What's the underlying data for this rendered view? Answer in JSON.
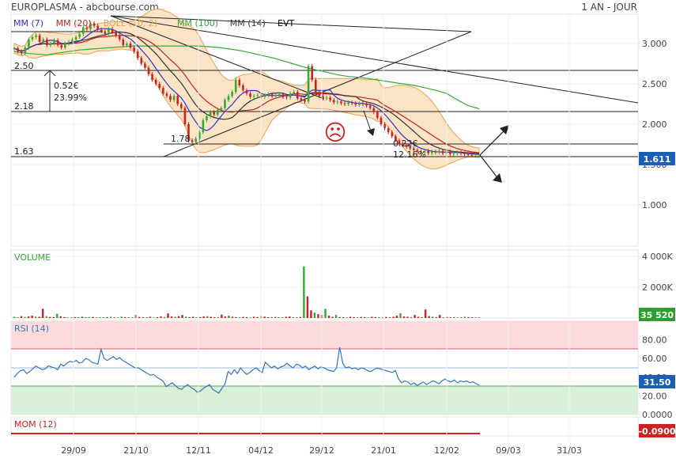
{
  "header": {
    "title": "EUROPLASMA - abcbourse.com",
    "period": "1 AN - JOUR"
  },
  "legend": [
    {
      "label": "MM (7)",
      "color": "#3333cc"
    },
    {
      "label": "MM (20)",
      "color": "#cc2222"
    },
    {
      "label": "BOLL (20, 2)",
      "color": "#f0a050"
    },
    {
      "label": "MM (100)",
      "color": "#33aa33"
    },
    {
      "label": "MM (14)",
      "color": "#333333"
    },
    {
      "label": "EVT",
      "color": "#000000"
    }
  ],
  "colors": {
    "up": "#33aa33",
    "down": "#cc2222",
    "boll_fill": "#fbe3c6",
    "boll_line": "#f0a050",
    "mm7": "#3333cc",
    "mm20": "#cc2222",
    "mm100": "#33aa33",
    "mm14": "#333333",
    "rsi_line": "#3377bb",
    "badge_price": "#1a5fb4",
    "badge_volume": "#2e9e2e",
    "badge_mom": "#cc2222"
  },
  "annotations": {
    "level_high": "2.50",
    "level_mid": "2.18",
    "level_low": "1.63",
    "level_178": "1.78",
    "gain_abs": "0.52€",
    "gain_pct": "23.99%",
    "drop_abs": "0.22€",
    "drop_pct": "12.16%",
    "smiley": "☹"
  },
  "badges": {
    "price": "1.611",
    "volume": "35 520",
    "rsi": "31.50",
    "mom": "-0.0900"
  },
  "panels": {
    "volume_title": "VOLUME",
    "rsi_title": "RSI (14)",
    "mom_title": "MOM (12)"
  },
  "chart_data": {
    "type": "line",
    "price": {
      "yticks": [
        "3.000",
        "2.500",
        "2.000",
        "1.500",
        "1.000"
      ],
      "ylim": [
        0.5,
        3.3
      ],
      "close": [
        2.94,
        2.9,
        2.88,
        2.95,
        3.05,
        3.08,
        3.1,
        3.02,
        3.05,
        2.98,
        3.0,
        3.04,
        2.98,
        2.95,
        3.0,
        3.02,
        3.05,
        3.08,
        3.12,
        3.2,
        3.18,
        3.25,
        3.22,
        3.17,
        3.15,
        3.12,
        3.18,
        3.14,
        3.1,
        3.05,
        2.98,
        3.0,
        2.95,
        2.9,
        2.82,
        2.75,
        2.7,
        2.62,
        2.55,
        2.5,
        2.45,
        2.38,
        2.35,
        2.3,
        2.35,
        2.25,
        2.2,
        2.0,
        1.8,
        1.78,
        1.82,
        1.9,
        2.05,
        2.1,
        2.15,
        2.12,
        2.18,
        2.2,
        2.3,
        2.35,
        2.4,
        2.55,
        2.48,
        2.42,
        2.38,
        2.34,
        2.35,
        2.36,
        2.34,
        2.36,
        2.37,
        2.35,
        2.36,
        2.37,
        2.34,
        2.33,
        2.38,
        2.4,
        2.32,
        2.3,
        2.28,
        2.72,
        2.55,
        2.4,
        2.35,
        2.32,
        2.33,
        2.3,
        2.27,
        2.28,
        2.26,
        2.25,
        2.27,
        2.26,
        2.24,
        2.26,
        2.25,
        2.23,
        2.2,
        2.15,
        2.08,
        2.0,
        1.95,
        1.9,
        1.85,
        1.8,
        1.76,
        1.74,
        1.72,
        1.7,
        1.68,
        1.66,
        1.65,
        1.67,
        1.64,
        1.66,
        1.65,
        1.67,
        1.64,
        1.66,
        1.63,
        1.64,
        1.65,
        1.64,
        1.63,
        1.62,
        1.61,
        1.61,
        1.611
      ],
      "mm100": [
        2.9,
        2.88,
        2.87,
        2.86,
        2.88,
        2.9,
        2.92,
        2.93,
        2.94,
        2.95,
        2.96,
        2.97,
        2.97,
        2.97,
        2.97,
        2.97,
        2.97,
        2.97,
        2.96,
        2.95,
        2.93,
        2.91,
        2.88,
        2.85,
        2.82,
        2.78,
        2.74,
        2.7,
        2.67,
        2.64,
        2.61,
        2.59,
        2.58,
        2.56,
        2.54,
        2.52,
        2.5,
        2.48,
        2.45,
        2.42,
        2.38,
        2.3,
        2.23,
        2.19
      ],
      "x_ticks": [
        "29/09",
        "21/10",
        "12/11",
        "04/12",
        "29/12",
        "21/01",
        "12/02",
        "09/03",
        "31/03"
      ]
    },
    "volume": {
      "yticks": [
        "4 000K",
        "2 000K"
      ],
      "ylim": [
        0,
        4000
      ],
      "values": [
        80,
        40,
        120,
        60,
        100,
        150,
        90,
        80,
        600,
        120,
        70,
        60,
        280,
        110,
        60,
        40,
        30,
        60,
        50,
        80,
        40,
        60,
        70,
        30,
        50,
        40,
        60,
        80,
        40,
        30,
        90,
        60,
        40,
        50,
        200,
        70,
        60,
        40,
        80,
        30,
        60,
        100,
        60,
        300,
        100,
        80,
        120,
        200,
        90,
        60,
        80,
        40,
        60,
        100,
        120,
        80,
        50,
        60,
        220,
        100,
        150,
        80,
        60,
        50,
        70,
        60,
        40,
        80,
        60,
        120,
        90,
        50,
        60,
        70,
        40,
        50,
        80,
        100,
        60,
        40,
        70,
        3350,
        1400,
        500,
        350,
        250,
        200,
        600,
        150,
        80,
        200,
        60,
        50,
        40,
        80,
        60,
        50,
        70,
        60,
        40,
        80,
        60,
        50,
        40,
        70,
        60,
        80,
        150,
        300,
        100,
        80,
        60,
        200,
        80,
        60,
        550,
        120,
        80,
        60,
        200,
        50,
        70,
        40,
        60,
        30,
        40,
        80,
        60,
        50,
        40,
        35
      ]
    },
    "rsi": {
      "yticks": [
        "80.00",
        "60.00",
        "40.00",
        "20.00",
        "0.0000"
      ],
      "ylim": [
        0,
        100
      ],
      "values": [
        40,
        44,
        47,
        48,
        44,
        46,
        49,
        52,
        50,
        48,
        49,
        52,
        51,
        50,
        48,
        54,
        52,
        55,
        57,
        56,
        58,
        55,
        56,
        60,
        59,
        56,
        55,
        54,
        70,
        60,
        58,
        60,
        62,
        59,
        61,
        58,
        56,
        54,
        52,
        50,
        50,
        48,
        46,
        44,
        42,
        43,
        40,
        38,
        36,
        30,
        32,
        34,
        31,
        28,
        27,
        30,
        32,
        29,
        27,
        24,
        25,
        28,
        30,
        32,
        27,
        25,
        23,
        28,
        33,
        46,
        43,
        48,
        44,
        50,
        46,
        43,
        45,
        48,
        50,
        47,
        45,
        56,
        53,
        50,
        52,
        49,
        51,
        52,
        55,
        52,
        50,
        54,
        53,
        50,
        52,
        48,
        50,
        52,
        49,
        51,
        50,
        48,
        47,
        46,
        50,
        72,
        55,
        50,
        51,
        49,
        50,
        48,
        50,
        49,
        47,
        46,
        48,
        50,
        49,
        48,
        47,
        46,
        45,
        47,
        38,
        34,
        36,
        35,
        32,
        34,
        31,
        33,
        35,
        32,
        34,
        36,
        35,
        33,
        36,
        38,
        36,
        35,
        37,
        34,
        36,
        35,
        36,
        34,
        35,
        33,
        31.5
      ]
    },
    "mom": {
      "value": -0.09
    }
  }
}
